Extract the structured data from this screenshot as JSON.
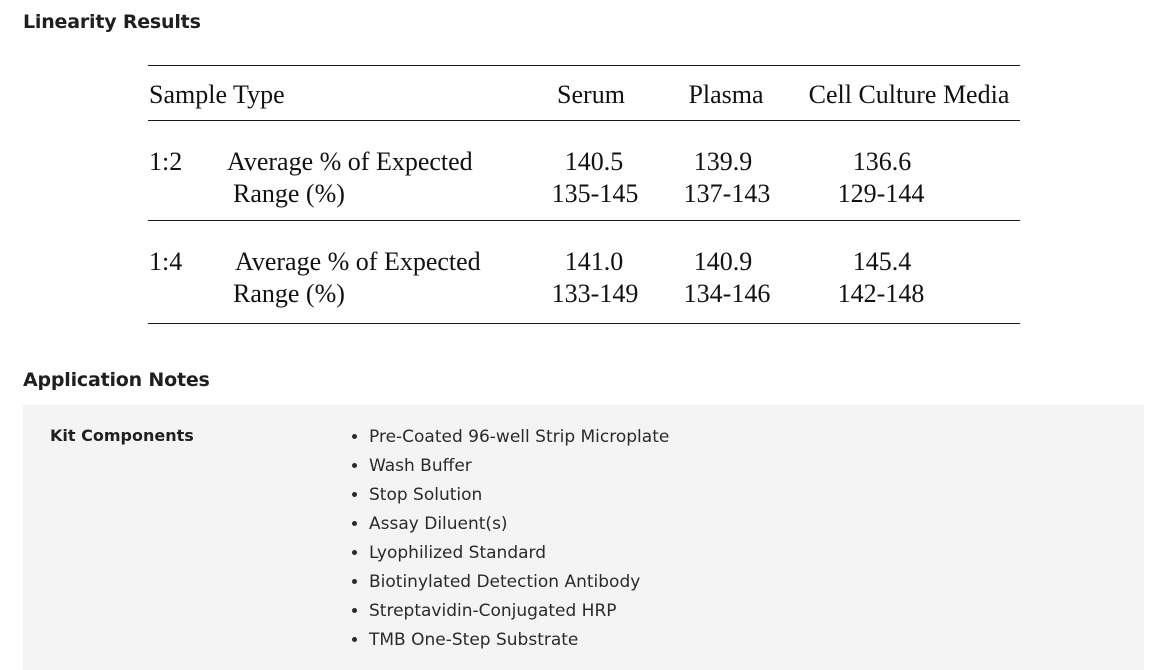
{
  "sections": {
    "linearity_title": "Linearity Results",
    "application_title": "Application Notes"
  },
  "linearity_table": {
    "headers": {
      "sample_type": "Sample Type",
      "serum": "Serum",
      "plasma": "Plasma",
      "cell_culture": "Cell Culture Media"
    },
    "rows": [
      {
        "dilution": "1:2",
        "avg_label": "Average % of Expected",
        "range_label": "Range (%)",
        "serum_avg": "140.5",
        "serum_range": "135-145",
        "plasma_avg": "139.9",
        "plasma_range": "137-143",
        "cell_avg": "136.6",
        "cell_range": "129-144"
      },
      {
        "dilution": "1:4",
        "avg_label": "Average % of Expected",
        "range_label": "Range (%)",
        "serum_avg": "141.0",
        "serum_range": "133-149",
        "plasma_avg": "140.9",
        "plasma_range": "134-146",
        "cell_avg": "145.4",
        "cell_range": "142-148"
      }
    ]
  },
  "application_notes": {
    "kit_label": "Kit Components",
    "components": [
      "Pre-Coated 96-well Strip Microplate",
      "Wash Buffer",
      "Stop Solution",
      "Assay Diluent(s)",
      "Lyophilized Standard",
      "Biotinylated Detection Antibody",
      "Streptavidin-Conjugated HRP",
      "TMB One-Step Substrate"
    ]
  }
}
